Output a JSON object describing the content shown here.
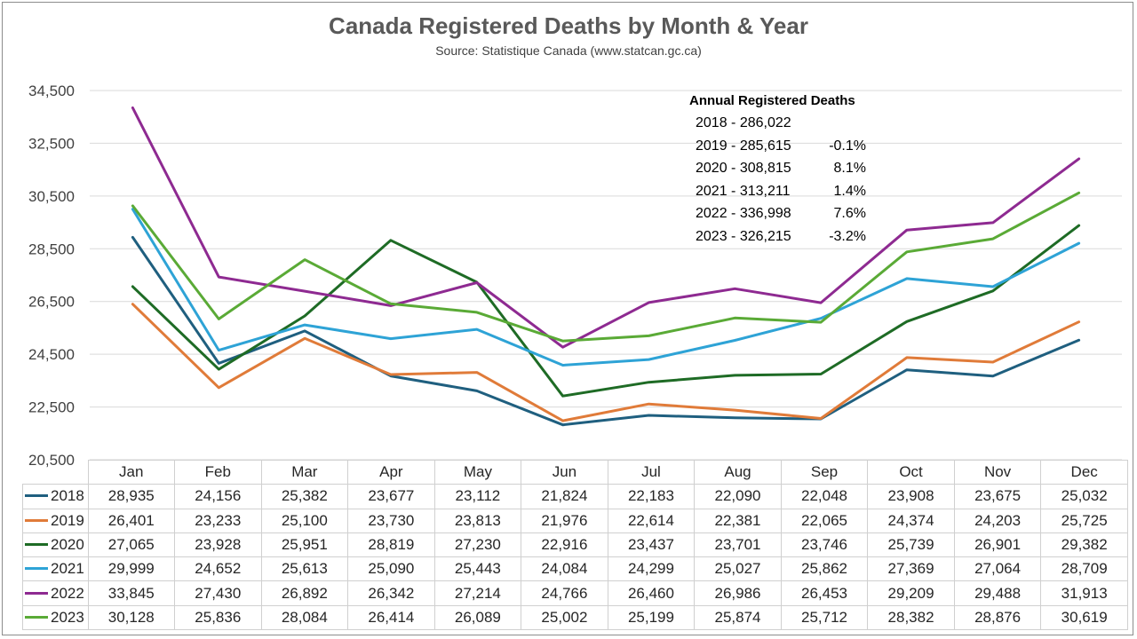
{
  "header": {
    "title": "Canada Registered Deaths by Month & Year",
    "subtitle": "Source: Statistique Canada (www.statcan.gc.ca)"
  },
  "annotation": {
    "title": "Annual Registered Deaths",
    "rows": [
      {
        "label": "2018 - 286,022",
        "pct": ""
      },
      {
        "label": "2019 - 285,615",
        "pct": "-0.1%"
      },
      {
        "label": "2020 - 308,815",
        "pct": "8.1%"
      },
      {
        "label": "2021 - 313,211",
        "pct": "1.4%"
      },
      {
        "label": "2022 - 336,998",
        "pct": "7.6%"
      },
      {
        "label": "2023 - 326,215",
        "pct": "-3.2%"
      }
    ]
  },
  "chart_data": {
    "type": "line",
    "title": "Canada Registered Deaths by Month & Year",
    "subtitle": "Source: Statistique Canada (www.statcan.gc.ca)",
    "categories": [
      "Jan",
      "Feb",
      "Mar",
      "Apr",
      "May",
      "Jun",
      "Jul",
      "Aug",
      "Sep",
      "Oct",
      "Nov",
      "Dec"
    ],
    "ylim": [
      20500,
      34500
    ],
    "yticks": [
      "20,500",
      "22,500",
      "24,500",
      "26,500",
      "28,500",
      "30,500",
      "32,500",
      "34,500"
    ],
    "grid": true,
    "series": [
      {
        "name": "2018",
        "color": "#1f5f7f",
        "values": [
          28935,
          24156,
          25382,
          23677,
          23112,
          21824,
          22183,
          22090,
          22048,
          23908,
          23675,
          25032
        ],
        "labels": [
          "28,935",
          "24,156",
          "25,382",
          "23,677",
          "23,112",
          "21,824",
          "22,183",
          "22,090",
          "22,048",
          "23,908",
          "23,675",
          "25,032"
        ]
      },
      {
        "name": "2019",
        "color": "#e07b39",
        "values": [
          26401,
          23233,
          25100,
          23730,
          23813,
          21976,
          22614,
          22381,
          22065,
          24374,
          24203,
          25725
        ],
        "labels": [
          "26,401",
          "23,233",
          "25,100",
          "23,730",
          "23,813",
          "21,976",
          "22,614",
          "22,381",
          "22,065",
          "24,374",
          "24,203",
          "25,725"
        ]
      },
      {
        "name": "2020",
        "color": "#1e6b25",
        "values": [
          27065,
          23928,
          25951,
          28819,
          27230,
          22916,
          23437,
          23701,
          23746,
          25739,
          26901,
          29382
        ],
        "labels": [
          "27,065",
          "23,928",
          "25,951",
          "28,819",
          "27,230",
          "22,916",
          "23,437",
          "23,701",
          "23,746",
          "25,739",
          "26,901",
          "29,382"
        ]
      },
      {
        "name": "2021",
        "color": "#2ea3d6",
        "values": [
          29999,
          24652,
          25613,
          25090,
          25443,
          24084,
          24299,
          25027,
          25862,
          27369,
          27064,
          28709
        ],
        "labels": [
          "29,999",
          "24,652",
          "25,613",
          "25,090",
          "25,443",
          "24,084",
          "24,299",
          "25,027",
          "25,862",
          "27,369",
          "27,064",
          "28,709"
        ]
      },
      {
        "name": "2022",
        "color": "#8e2a91",
        "values": [
          33845,
          27430,
          26892,
          26342,
          27214,
          24766,
          26460,
          26986,
          26453,
          29209,
          29488,
          31913
        ],
        "labels": [
          "33,845",
          "27,430",
          "26,892",
          "26,342",
          "27,214",
          "24,766",
          "26,460",
          "26,986",
          "26,453",
          "29,209",
          "29,488",
          "31,913"
        ]
      },
      {
        "name": "2023",
        "color": "#5aaa36",
        "values": [
          30128,
          25836,
          28084,
          26414,
          26089,
          25002,
          25199,
          25874,
          25712,
          28382,
          28876,
          30619
        ],
        "labels": [
          "30,128",
          "25,836",
          "28,084",
          "26,414",
          "26,089",
          "25,002",
          "25,199",
          "25,874",
          "25,712",
          "28,382",
          "28,876",
          "30,619"
        ]
      }
    ]
  }
}
